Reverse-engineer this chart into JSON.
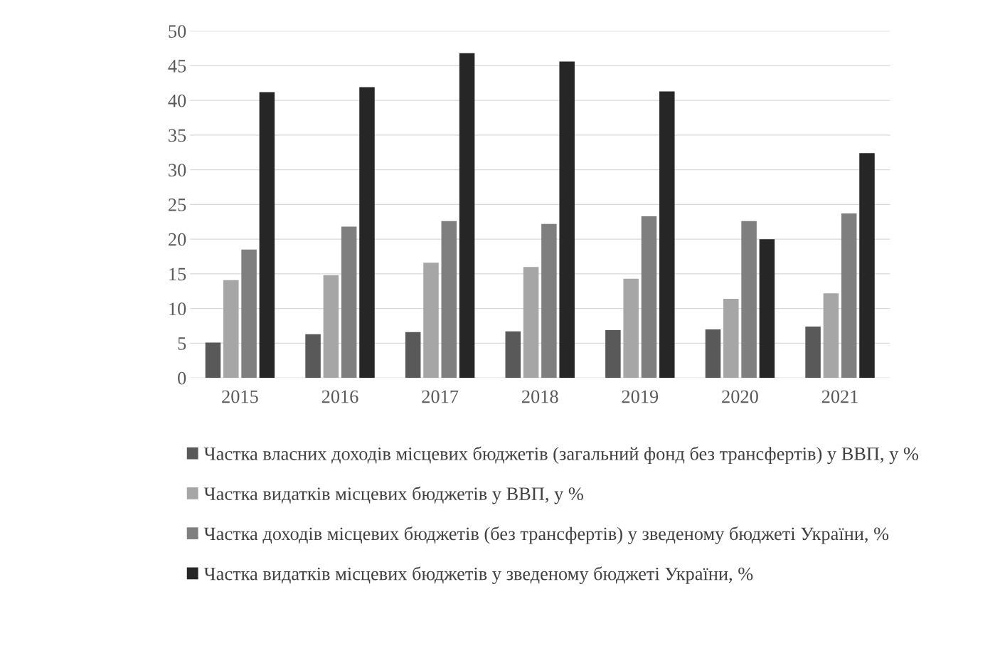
{
  "chart_data": {
    "type": "bar",
    "categories": [
      "2015",
      "2016",
      "2017",
      "2018",
      "2019",
      "2020",
      "2021"
    ],
    "series": [
      {
        "name": "Частка власних доходів місцевих бюджетів (загальний фонд без трансфертів) у ВВП, у %",
        "color": "#595959",
        "values": [
          5.1,
          6.3,
          6.6,
          6.7,
          6.9,
          7.0,
          7.4
        ]
      },
      {
        "name": "Частка видатків місцевих бюджетів у ВВП, у %",
        "color": "#a6a6a6",
        "values": [
          14.1,
          14.8,
          16.6,
          16.0,
          14.3,
          11.4,
          12.2
        ]
      },
      {
        "name": "Частка доходів місцевих бюджетів (без трансфертів) у зведеному бюджеті України, %",
        "color": "#7f7f7f",
        "values": [
          18.5,
          21.8,
          22.6,
          22.2,
          23.3,
          22.6,
          23.7
        ]
      },
      {
        "name": "Частка видатків місцевих бюджетів у зведеному бюджеті України, %",
        "color": "#262626",
        "values": [
          41.2,
          41.9,
          46.8,
          45.6,
          41.3,
          20.0,
          32.4
        ]
      }
    ],
    "ylim": [
      0,
      50
    ],
    "yticks": [
      0,
      5,
      10,
      15,
      20,
      25,
      30,
      35,
      40,
      45,
      50
    ],
    "grid": "y",
    "legend": "bottom"
  }
}
